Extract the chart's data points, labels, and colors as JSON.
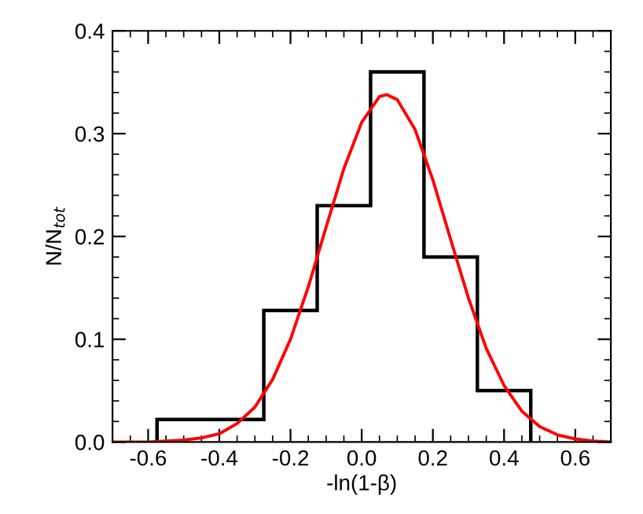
{
  "chart_data": {
    "type": "histogram",
    "xlabel": "-ln(1-β)",
    "ylabel": "N/N$_{tot}$",
    "bins": [
      -0.575,
      -0.275,
      -0.125,
      0.025,
      0.175,
      0.325,
      0.475
    ],
    "values": [
      0.022,
      0.128,
      0.23,
      0.36,
      0.18,
      0.05
    ],
    "color": "#000000",
    "series": [
      {
        "type": "line",
        "color": "#ff0000",
        "x": [
          -0.7,
          -0.6,
          -0.5,
          -0.45,
          -0.4,
          -0.35,
          -0.3,
          -0.25,
          -0.2,
          -0.15,
          -0.1,
          -0.05,
          0,
          0.05,
          0.07,
          0.1,
          0.15,
          0.2,
          0.25,
          0.3,
          0.35,
          0.4,
          0.45,
          0.5,
          0.55,
          0.6,
          0.65,
          0.7
        ],
        "values": [
          0,
          0,
          0.002,
          0.004,
          0.008,
          0.018,
          0.034,
          0.061,
          0.1,
          0.151,
          0.209,
          0.266,
          0.311,
          0.336,
          0.338,
          0.333,
          0.304,
          0.255,
          0.197,
          0.14,
          0.091,
          0.055,
          0.03,
          0.015,
          0.007,
          0.003,
          0.001,
          0
        ]
      }
    ],
    "xlim": [
      -0.7,
      0.7
    ],
    "xticks": [
      -0.6,
      -0.4,
      -0.2,
      {
        "value": 0,
        "label": "0.0"
      },
      0.2,
      0.4,
      0.6
    ],
    "ylim": [
      0,
      0.4
    ],
    "yticks": [
      {
        "value": 0,
        "label": "0.0"
      },
      0.1,
      0.2,
      0.3,
      0.4
    ],
    "grid": false,
    "legend": false
  }
}
